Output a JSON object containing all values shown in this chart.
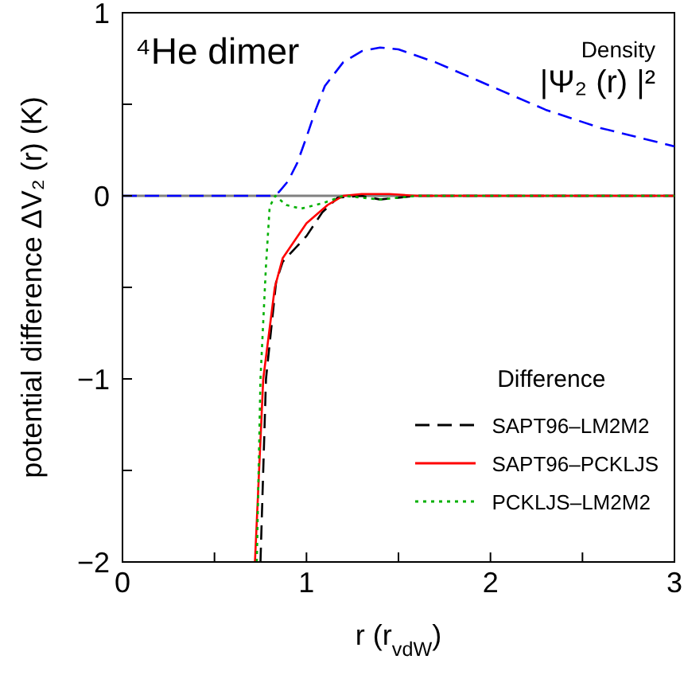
{
  "chart_data": {
    "type": "line",
    "xlabel": "r   (r$_{vdW}$)",
    "ylabel": "potential difference   ΔV₂ (r)   (K)",
    "annotations": [
      "⁴He  dimer",
      "Density"
    ],
    "legend_title": "Difference",
    "legend": "bottom right",
    "xlim": [
      0,
      3
    ],
    "ylim": [
      -2,
      1
    ],
    "xticks": [
      0,
      {
        "value": 0.5,
        "label": null
      },
      1,
      {
        "value": 1.5,
        "label": null
      },
      2,
      {
        "value": 2.5,
        "label": null
      },
      3
    ],
    "yticks": [
      -2,
      {
        "value": -1.5,
        "label": null
      },
      -1,
      {
        "value": -0.5,
        "label": null
      },
      0,
      {
        "value": 0.5,
        "label": null
      },
      1
    ],
    "ref_lines": [
      {
        "axis": "y",
        "value": 0,
        "color": "#808080"
      }
    ],
    "series": [
      {
        "name": "|Ψ₂ (r) |²",
        "color": "#0000ff",
        "line_style": "dashed",
        "x": [
          0,
          0.8,
          0.85,
          0.9,
          0.95,
          1.0,
          1.05,
          1.1,
          1.2,
          1.3,
          1.4,
          1.5,
          1.7,
          2.0,
          2.3,
          2.6,
          3.0
        ],
        "values": [
          0,
          0,
          0.02,
          0.08,
          0.18,
          0.32,
          0.47,
          0.6,
          0.73,
          0.79,
          0.81,
          0.8,
          0.73,
          0.6,
          0.47,
          0.37,
          0.27
        ]
      },
      {
        "name": "SAPT96–LM2M2",
        "color": "#000000",
        "line_style": "dashed",
        "x": [
          0.75,
          0.78,
          0.835,
          0.871,
          1.0,
          1.086,
          1.17,
          1.3,
          1.4,
          1.6,
          2.0,
          3.0
        ],
        "values": [
          -2,
          -1,
          -0.47,
          -0.36,
          -0.22,
          -0.09,
          -0.01,
          0,
          -0.02,
          0,
          0,
          0
        ]
      },
      {
        "name": "SAPT96–PCKLJS",
        "color": "#ff0000",
        "line_style": "solid",
        "x": [
          0.72,
          0.765,
          0.828,
          0.871,
          1.0,
          1.115,
          1.2,
          1.3,
          1.45,
          1.6,
          2.0,
          3.0
        ],
        "values": [
          -2,
          -1,
          -0.5,
          -0.34,
          -0.15,
          -0.05,
          0,
          0.01,
          0.01,
          0,
          0,
          0
        ]
      },
      {
        "name": "PCKLJS–LM2M2",
        "color": "#00b000",
        "line_style": "dotted",
        "x": [
          0.73,
          0.75,
          0.78,
          0.8,
          0.83,
          0.89,
          0.97,
          1.09,
          1.2,
          1.4,
          1.6,
          2.0,
          3.0
        ],
        "values": [
          -2,
          -1,
          -0.38,
          -0.06,
          0,
          -0.05,
          -0.07,
          -0.04,
          0,
          -0.02,
          0,
          0,
          0
        ]
      }
    ]
  }
}
